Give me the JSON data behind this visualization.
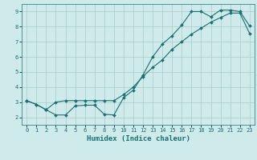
{
  "xlabel": "Humidex (Indice chaleur)",
  "bg_color": "#ceeaea",
  "line_color": "#1a7070",
  "grid_color": "#aacaca",
  "xlim": [
    -0.5,
    23.5
  ],
  "ylim": [
    1.5,
    9.5
  ],
  "xticks": [
    0,
    1,
    2,
    3,
    4,
    5,
    6,
    7,
    8,
    9,
    10,
    11,
    12,
    13,
    14,
    15,
    16,
    17,
    18,
    19,
    20,
    21,
    22,
    23
  ],
  "yticks": [
    2,
    3,
    4,
    5,
    6,
    7,
    8,
    9
  ],
  "series1_x": [
    0,
    1,
    2,
    3,
    4,
    5,
    6,
    7,
    8,
    9,
    10,
    11,
    12,
    13,
    14,
    15,
    16,
    17,
    18,
    19,
    20,
    21,
    22,
    23
  ],
  "series1_y": [
    3.1,
    2.85,
    2.5,
    2.15,
    2.15,
    2.75,
    2.8,
    2.8,
    2.2,
    2.15,
    3.3,
    3.8,
    4.8,
    6.0,
    6.85,
    7.4,
    8.1,
    9.0,
    9.0,
    8.65,
    9.1,
    9.1,
    9.0,
    8.05
  ],
  "series2_x": [
    0,
    1,
    2,
    3,
    4,
    5,
    6,
    7,
    8,
    9,
    10,
    11,
    12,
    13,
    14,
    15,
    16,
    17,
    18,
    19,
    20,
    21,
    22,
    23
  ],
  "series2_y": [
    3.1,
    2.85,
    2.5,
    3.0,
    3.1,
    3.1,
    3.1,
    3.1,
    3.1,
    3.1,
    3.5,
    4.0,
    4.7,
    5.3,
    5.8,
    6.5,
    7.0,
    7.5,
    7.9,
    8.3,
    8.6,
    8.9,
    8.9,
    7.55
  ],
  "marker_size": 2.0,
  "line_width": 0.8,
  "xlabel_fontsize": 6.5,
  "tick_fontsize": 5.0
}
